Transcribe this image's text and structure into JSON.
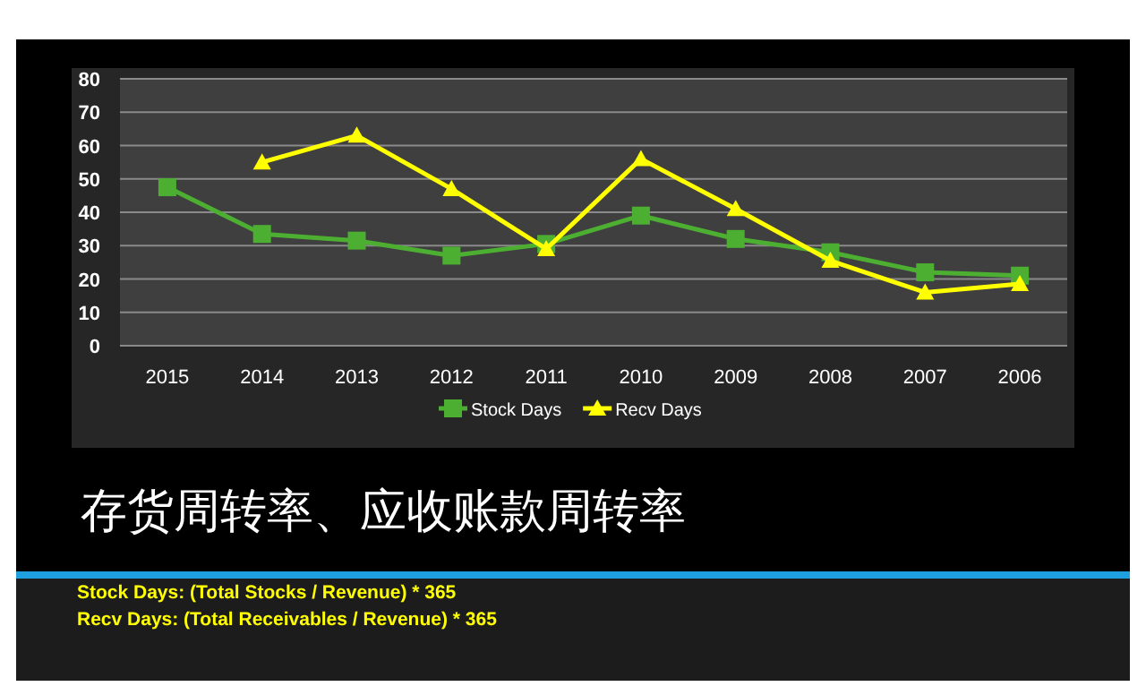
{
  "chart_data": {
    "type": "line",
    "title": "存货周转率、应收账款周转率",
    "categories": [
      "2015",
      "2014",
      "2013",
      "2012",
      "2011",
      "2010",
      "2009",
      "2008",
      "2007",
      "2006"
    ],
    "series": [
      {
        "name": "Stock Days",
        "color": "#4caf32",
        "marker": "square",
        "values": [
          47.5,
          33.5,
          31.5,
          27,
          30.5,
          39,
          32,
          28,
          22,
          21
        ]
      },
      {
        "name": "Recv Days",
        "color": "#ffff00",
        "marker": "triangle",
        "values": [
          null,
          55,
          63,
          47,
          29,
          56,
          41,
          25.5,
          16,
          18.5
        ]
      }
    ],
    "ylim": [
      0,
      80
    ],
    "yticks": [
      0,
      10,
      20,
      30,
      40,
      50,
      60,
      70,
      80
    ],
    "grid": "y",
    "legend": "bottom",
    "annotations": [
      "Stock Days: (Total Stocks / Revenue) * 365",
      "Recv Days: (Total Receivables / Revenue) * 365"
    ]
  }
}
